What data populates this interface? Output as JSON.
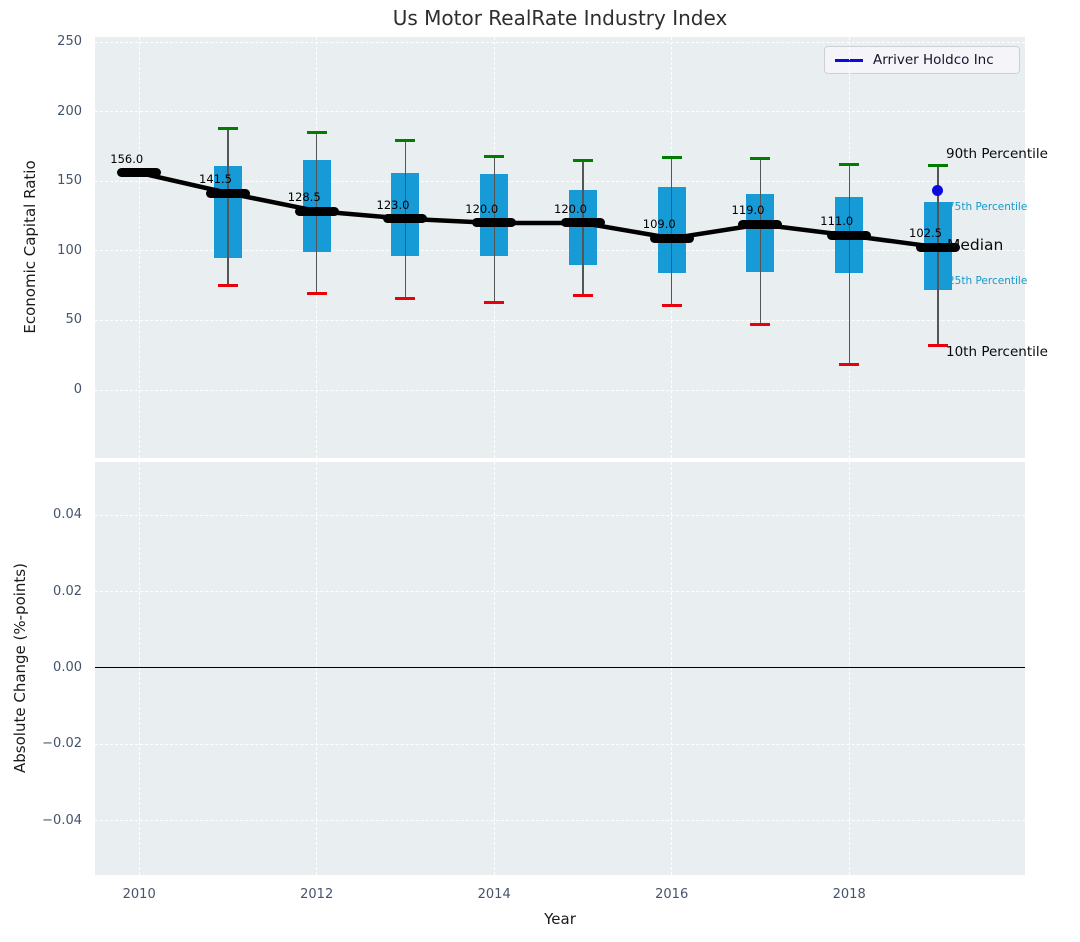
{
  "title": "Us Motor RealRate Industry Index",
  "legend": {
    "label": "Arriver Holdco Inc"
  },
  "colors": {
    "box_fill": "#179bd7",
    "whisker": "#555555",
    "cap_upper": "#007d00",
    "cap_lower": "#e8000b",
    "median": "#000000",
    "highlight": "#0b0bdd",
    "grid": "#ffffff",
    "plot_bg": "#e9eef0",
    "tick_label": "#44546b",
    "cyan_label": "#149acc",
    "zero_line": "#000000"
  },
  "axes": {
    "top": {
      "ylabel": "Economic Capital Ratio",
      "yticks": [
        {
          "label": "250",
          "value": 250
        },
        {
          "label": "200",
          "value": 200
        },
        {
          "label": "150",
          "value": 150
        },
        {
          "label": "100",
          "value": 100
        },
        {
          "label": "50",
          "value": 50
        },
        {
          "label": "0",
          "value": 0
        }
      ]
    },
    "bottom": {
      "ylabel": "Absolute Change (%-points)",
      "yticks": [
        {
          "label": "0.04",
          "value": 0.04
        },
        {
          "label": "0.02",
          "value": 0.02
        },
        {
          "label": "0.00",
          "value": 0.0
        },
        {
          "label": "−0.02",
          "value": -0.02
        },
        {
          "label": "−0.04",
          "value": -0.04
        }
      ],
      "zero_value": 0.0
    },
    "x": {
      "label": "Year",
      "ticks": [
        {
          "label": "2010",
          "value": 2010
        },
        {
          "label": "2012",
          "value": 2012
        },
        {
          "label": "2014",
          "value": 2014
        },
        {
          "label": "2016",
          "value": 2016
        },
        {
          "label": "2018",
          "value": 2018
        }
      ]
    }
  },
  "annotations": {
    "p90": "90th Percentile",
    "p75": "75th Percentile",
    "median": "Median",
    "p25": "25th Percentile",
    "p10": "10th Percentile"
  },
  "chart_data": {
    "type": "boxplot-with-median-line",
    "title": "Us Motor RealRate Industry Index",
    "xlabel": "Year",
    "ylabel": "Economic Capital Ratio",
    "years": [
      2010,
      2011,
      2012,
      2013,
      2014,
      2015,
      2016,
      2017,
      2018,
      2019
    ],
    "median": [
      156.0,
      141.5,
      128.5,
      123.0,
      120.0,
      120.0,
      109.0,
      119.0,
      111.0,
      102.5
    ],
    "median_labels": [
      "156.0",
      "141.5",
      "128.5",
      "123.0",
      "120.0",
      "120.0",
      "109.0",
      "119.0",
      "111.0",
      "102.5"
    ],
    "p90": [
      null,
      188,
      185,
      179,
      168,
      165,
      167,
      166,
      162,
      161
    ],
    "p75": [
      null,
      161,
      165,
      156,
      155,
      144,
      146,
      141,
      139,
      135
    ],
    "p25": [
      null,
      95,
      99,
      96,
      96,
      90,
      84,
      85,
      84,
      72
    ],
    "p10": [
      null,
      75,
      69,
      66,
      63,
      68,
      61,
      47,
      18,
      32
    ],
    "highlight_series": {
      "name": "Arriver Holdco Inc",
      "year": 2019,
      "value": 143
    },
    "top_ylim": [
      -49,
      253
    ],
    "bottom_ylim": [
      -0.054,
      0.054
    ],
    "bottom_panel": {
      "ylabel": "Absolute Change (%-points)",
      "data": [],
      "zero_line": 0.0
    },
    "grid": true,
    "legend_position": "upper right"
  }
}
